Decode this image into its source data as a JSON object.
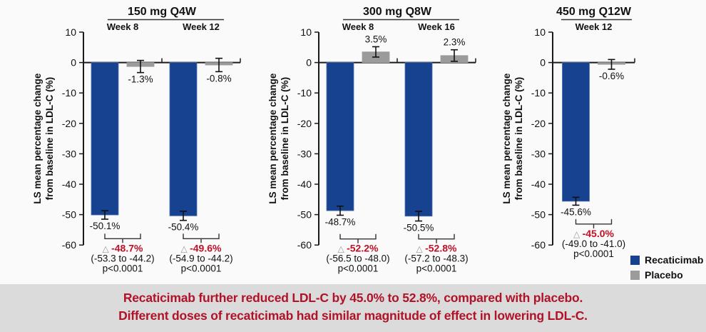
{
  "colors": {
    "recaticimab": "#17428F",
    "recaticimab_edge": "#4a6fb0",
    "placebo": "#9B9B9B",
    "delta_red": "#BE1126",
    "axis": "#1a1a1a",
    "banner_bg": "#dbdbdb",
    "banner_text": "#b01228",
    "chart_bg": "#fafafa"
  },
  "y_axis_label": [
    "LS mean percentage change",
    "from baseline in LDL-C (%)"
  ],
  "legend": {
    "items": [
      {
        "label": "Recaticimab",
        "color_key": "recaticimab"
      },
      {
        "label": "Placebo",
        "color_key": "placebo"
      }
    ]
  },
  "banner": {
    "line1": "Recaticimab further reduced LDL-C by 45.0% to 52.8%, compared with placebo.",
    "line2": "Different doses of recaticimab had similar magnitude of effect in lowering LDL-C."
  },
  "chart_data": [
    {
      "type": "bar",
      "title": "150 mg Q4W",
      "ylabel": "LS mean percentage change from baseline in LDL-C (%)",
      "ylim": [
        -60,
        10
      ],
      "yticks": [
        10,
        0,
        -10,
        -20,
        -30,
        -40,
        -50,
        -60
      ],
      "legend_position": "bottom-right",
      "grid": false,
      "groups": [
        {
          "label": "Week 8",
          "recaticimab": {
            "value": -50.1,
            "display": "-50.1%",
            "error": 1.4
          },
          "placebo": {
            "value": -1.3,
            "display": "-1.3%",
            "error": 2.0
          },
          "difference": {
            "delta": "-48.7%",
            "ci": "(-53.3 to -44.2)",
            "p": "p<0.0001"
          }
        },
        {
          "label": "Week 12",
          "recaticimab": {
            "value": -50.4,
            "display": "-50.4%",
            "error": 1.5
          },
          "placebo": {
            "value": -0.8,
            "display": "-0.8%",
            "error": 2.2
          },
          "difference": {
            "delta": "-49.6%",
            "ci": "(-54.9 to -44.2)",
            "p": "p<0.0001"
          }
        }
      ]
    },
    {
      "type": "bar",
      "title": "300 mg Q8W",
      "ylabel": "LS mean percentage change from baseline in LDL-C (%)",
      "ylim": [
        -60,
        10
      ],
      "yticks": [
        10,
        0,
        -10,
        -20,
        -30,
        -40,
        -50,
        -60
      ],
      "grid": false,
      "groups": [
        {
          "label": "Week 8",
          "recaticimab": {
            "value": -48.7,
            "display": "-48.7%",
            "error": 1.5
          },
          "placebo": {
            "value": 3.5,
            "display": "3.5%",
            "error": 1.7
          },
          "difference": {
            "delta": "-52.2%",
            "ci": "(-56.5 to -48.0)",
            "p": "p<0.0001"
          }
        },
        {
          "label": "Week 16",
          "recaticimab": {
            "value": -50.5,
            "display": "-50.5%",
            "error": 1.6
          },
          "placebo": {
            "value": 2.3,
            "display": "2.3%",
            "error": 1.9
          },
          "difference": {
            "delta": "-52.8%",
            "ci": "(-57.2 to -48.3)",
            "p": "p<0.0001"
          }
        }
      ]
    },
    {
      "type": "bar",
      "title": "450 mg Q12W",
      "ylabel": "LS mean percentage change from baseline in LDL-C (%)",
      "ylim": [
        -60,
        10
      ],
      "yticks": [
        10,
        0,
        -10,
        -20,
        -30,
        -40,
        -50,
        -60
      ],
      "grid": false,
      "groups": [
        {
          "label": "Week 12",
          "recaticimab": {
            "value": -45.6,
            "display": "-45.6%",
            "error": 1.3
          },
          "placebo": {
            "value": -0.6,
            "display": "-0.6%",
            "error": 1.6
          },
          "difference": {
            "delta": "-45.0%",
            "ci": "(-49.0 to -41.0)",
            "p": "p<0.0001"
          }
        }
      ]
    }
  ]
}
